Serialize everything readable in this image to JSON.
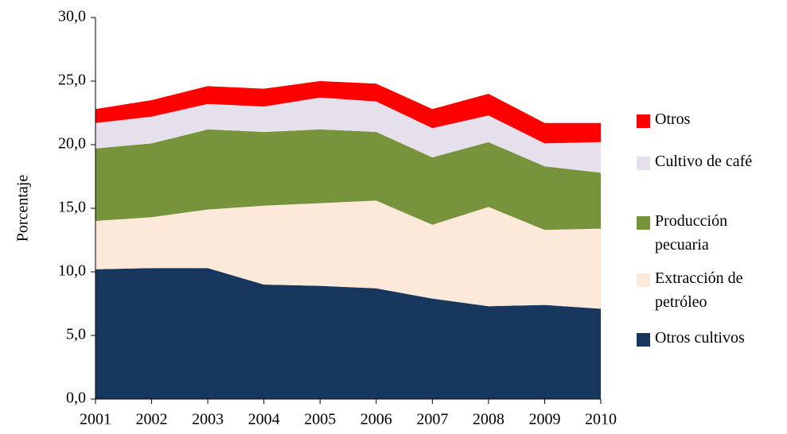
{
  "chart_data": {
    "type": "stacked-area",
    "y_label": "Porcentaje",
    "categories": [
      "2001",
      "2002",
      "2003",
      "2004",
      "2005",
      "2006",
      "2007",
      "2008",
      "2009",
      "2010"
    ],
    "series": [
      {
        "name": "Otros cultivos",
        "color": "#17375e",
        "values": [
          10.2,
          10.3,
          10.3,
          9.0,
          8.9,
          8.7,
          7.9,
          7.3,
          7.4,
          7.1
        ]
      },
      {
        "name": "Extracción de petróleo",
        "color": "#fde9d9",
        "values": [
          3.8,
          4.0,
          4.6,
          6.2,
          6.5,
          6.9,
          5.8,
          7.8,
          5.9,
          6.3
        ]
      },
      {
        "name": "Producción pecuaria",
        "color": "#77933c",
        "values": [
          5.7,
          5.8,
          6.3,
          5.8,
          5.8,
          5.4,
          5.3,
          5.1,
          5.0,
          4.4
        ]
      },
      {
        "name": "Cultivo de café",
        "color": "#e6e0ec",
        "values": [
          2.0,
          2.1,
          2.0,
          2.0,
          2.5,
          2.4,
          2.3,
          2.1,
          1.8,
          2.4
        ]
      },
      {
        "name": "Otros",
        "color": "#ff0000",
        "values": [
          1.1,
          1.3,
          1.4,
          1.4,
          1.3,
          1.4,
          1.5,
          1.7,
          1.6,
          1.5
        ]
      }
    ],
    "ylim": [
      0,
      30
    ],
    "yticks": [
      {
        "value": 0,
        "label": "0,0"
      },
      {
        "value": 5,
        "label": "5,0"
      },
      {
        "value": 10,
        "label": "10,0"
      },
      {
        "value": 15,
        "label": "15,0"
      },
      {
        "value": 20,
        "label": "20,0"
      },
      {
        "value": 25,
        "label": "25,0"
      },
      {
        "value": 30,
        "label": "30,0"
      }
    ],
    "grid": false
  }
}
